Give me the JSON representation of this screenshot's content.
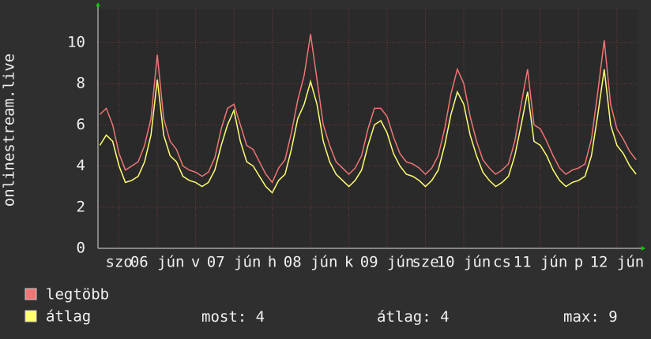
{
  "chart_data": {
    "type": "line",
    "y_label": "onlinestream.live",
    "x": [
      -18,
      -16,
      -14,
      -12,
      -10,
      -8,
      -6,
      -4,
      -2,
      0,
      2,
      4,
      6,
      8,
      10,
      12,
      14,
      16,
      18,
      20,
      22,
      24,
      26,
      28,
      30,
      32,
      34,
      36,
      38,
      40,
      42,
      44,
      46,
      48,
      50,
      52,
      54,
      56,
      58,
      60,
      62,
      64,
      66,
      68,
      70,
      72,
      74,
      76,
      78,
      80,
      82,
      84,
      86,
      88,
      90,
      92,
      94,
      96,
      98,
      100,
      102,
      104,
      106,
      108,
      110,
      112,
      114,
      116,
      118,
      120,
      122,
      124,
      126,
      128,
      130,
      132,
      134,
      136,
      138,
      140,
      142,
      144,
      146,
      148,
      150
    ],
    "series": [
      {
        "name": "legtöbb",
        "color": "#f07575",
        "values": [
          6.5,
          6.8,
          6.0,
          4.6,
          3.8,
          4.0,
          4.2,
          5.0,
          6.3,
          9.4,
          6.3,
          5.2,
          4.8,
          4.0,
          3.8,
          3.7,
          3.5,
          3.7,
          4.4,
          5.8,
          6.8,
          7.0,
          6.0,
          5.0,
          4.8,
          4.2,
          3.6,
          3.2,
          3.9,
          4.3,
          5.6,
          7.2,
          8.4,
          10.4,
          8.2,
          6.0,
          5.0,
          4.2,
          3.9,
          3.6,
          3.9,
          4.5,
          5.8,
          6.8,
          6.8,
          6.4,
          5.4,
          4.6,
          4.2,
          4.1,
          3.9,
          3.6,
          3.9,
          4.5,
          5.8,
          7.5,
          8.7,
          8.0,
          6.4,
          5.2,
          4.3,
          3.9,
          3.6,
          3.8,
          4.1,
          5.2,
          7.0,
          8.7,
          6.0,
          5.8,
          5.2,
          4.5,
          3.9,
          3.6,
          3.8,
          3.9,
          4.1,
          5.3,
          7.6,
          10.1,
          7.0,
          5.8,
          5.3,
          4.7,
          4.3
        ]
      },
      {
        "name": "átlag",
        "color": "#ffff70",
        "values": [
          5.0,
          5.5,
          5.2,
          4.0,
          3.2,
          3.3,
          3.5,
          4.2,
          5.5,
          8.2,
          5.5,
          4.5,
          4.2,
          3.5,
          3.3,
          3.2,
          3.0,
          3.2,
          3.8,
          5.0,
          6.0,
          6.7,
          5.2,
          4.2,
          4.0,
          3.5,
          3.0,
          2.7,
          3.3,
          3.6,
          4.8,
          6.3,
          7.0,
          8.1,
          7.0,
          5.2,
          4.2,
          3.6,
          3.3,
          3.0,
          3.3,
          3.8,
          5.0,
          6.0,
          6.2,
          5.6,
          4.6,
          4.0,
          3.6,
          3.5,
          3.3,
          3.0,
          3.3,
          3.8,
          5.0,
          6.5,
          7.6,
          7.0,
          5.5,
          4.5,
          3.7,
          3.3,
          3.0,
          3.2,
          3.5,
          4.5,
          6.0,
          7.6,
          5.2,
          5.0,
          4.5,
          3.8,
          3.3,
          3.0,
          3.2,
          3.3,
          3.5,
          4.5,
          6.5,
          8.7,
          6.0,
          5.0,
          4.6,
          4.0,
          3.6
        ]
      }
    ],
    "xlim": [
      -18.6,
      150.7
    ],
    "xticks": [
      {
        "value": -12,
        "label": "szo"
      },
      {
        "value": 0,
        "label": "06 jún"
      },
      {
        "value": 12,
        "label": "v"
      },
      {
        "value": 24,
        "label": "07 jún"
      },
      {
        "value": 36,
        "label": "h"
      },
      {
        "value": 48,
        "label": "08 jún"
      },
      {
        "value": 60,
        "label": "k"
      },
      {
        "value": 72,
        "label": "09 jún"
      },
      {
        "value": 84,
        "label": "sze"
      },
      {
        "value": 96,
        "label": "10 jún"
      },
      {
        "value": 108,
        "label": "cs"
      },
      {
        "value": 120,
        "label": "11 jún"
      },
      {
        "value": 132,
        "label": "p"
      },
      {
        "value": 144,
        "label": "12 jún"
      }
    ],
    "ylim": [
      0,
      11.6
    ],
    "yticks": [
      0,
      2,
      4,
      6,
      8,
      10
    ],
    "grid": true,
    "stats": [
      {
        "label": "most:",
        "value": 4
      },
      {
        "label": "átlag:",
        "value": 4
      },
      {
        "label": "max:",
        "value": 9
      }
    ]
  }
}
